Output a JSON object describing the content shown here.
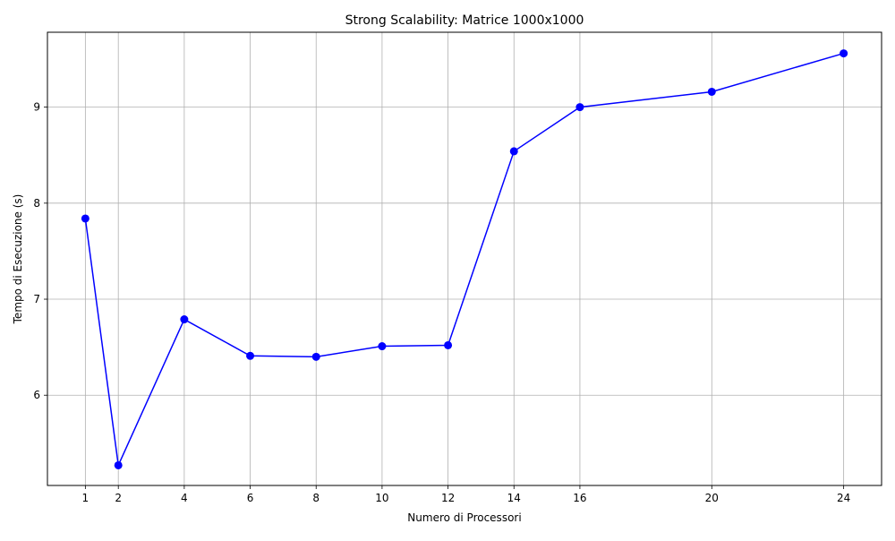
{
  "chart_data": {
    "type": "line",
    "title": "Strong Scalability: Matrice 1000x1000",
    "xlabel": "Numero di Processori",
    "ylabel": "Tempo di Esecuzione (s)",
    "x_ticks": [
      1,
      2,
      4,
      6,
      8,
      10,
      12,
      14,
      16,
      20,
      24
    ],
    "y_ticks": [
      6,
      7,
      8,
      9
    ],
    "xlim": [
      -0.15,
      25.15
    ],
    "ylim": [
      5.06,
      9.78
    ],
    "grid": true,
    "series": [
      {
        "x": [
          1,
          2,
          4,
          6,
          8,
          10,
          12,
          14,
          16,
          20,
          24
        ],
        "values": [
          7.84,
          5.27,
          6.79,
          6.41,
          6.4,
          6.51,
          6.52,
          8.54,
          9.0,
          9.16,
          9.56
        ],
        "color": "#0000ff",
        "marker": "circle"
      }
    ]
  }
}
